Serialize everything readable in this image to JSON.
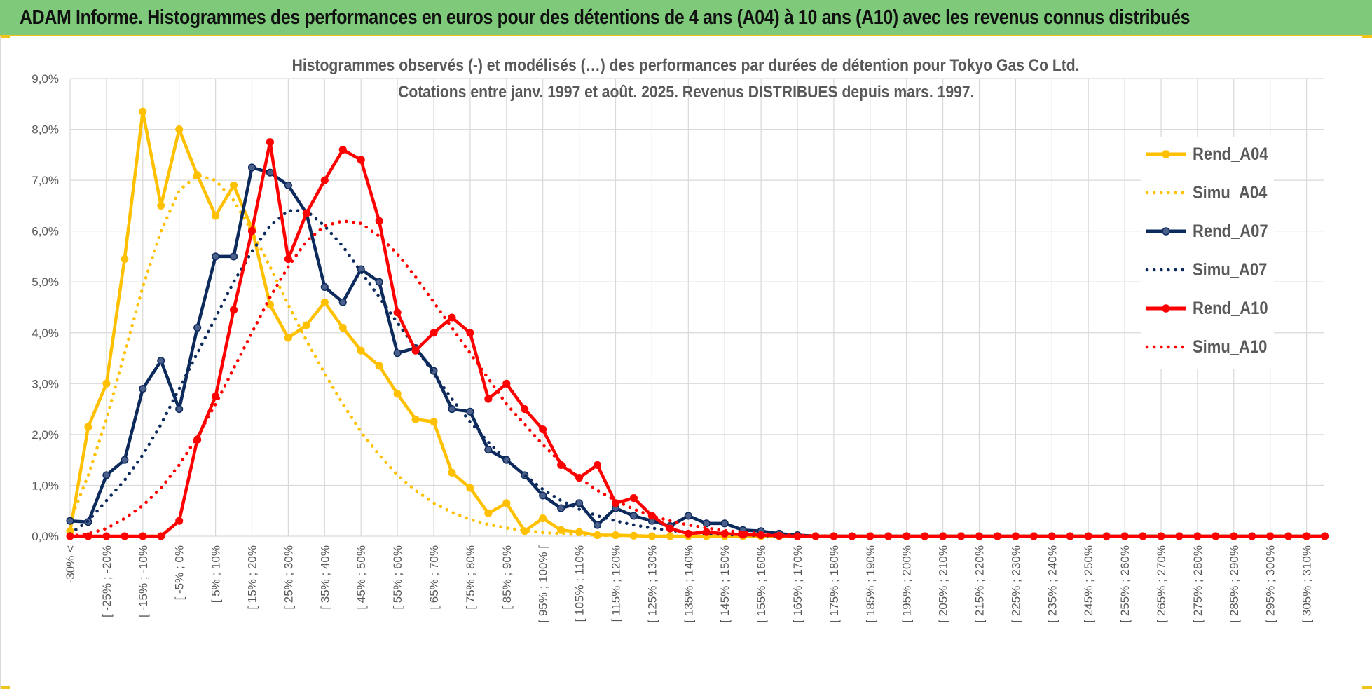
{
  "banner": {
    "title": "ADAM Informe. Histogrammes des performances en euros pour des détentions de 4 ans (A04) à 10 ans (A10) avec les revenus connus distribués"
  },
  "colors": {
    "banner_bg": "#7fc97a",
    "accent_yellow": "#f0c419",
    "A04": "#ffc000",
    "A07": "#0d2a5c",
    "A10": "#ff0000"
  },
  "chart_data": {
    "type": "line",
    "title_line1": "Histogrammes observés (-) et modélisés (…) des performances par durées de détention pour Tokyo Gas Co Ltd.",
    "title_line2": "Cotations entre janv. 1997 et août. 2025. Revenus DISTRIBUES depuis mars. 1997.",
    "ylim": [
      0,
      9
    ],
    "yticks": [
      "0,0%",
      "1,0%",
      "2,0%",
      "3,0%",
      "4,0%",
      "5,0%",
      "6,0%",
      "7,0%",
      "8,0%",
      "9,0%"
    ],
    "grid": true,
    "legend_position": "right",
    "category_labels": [
      "-30% <",
      "[ -25% ; -20%",
      "[ -15% ; -10%",
      "[ -5% ; 0%",
      "[ 5% ; 10%",
      "[ 15% ; 20%",
      "[ 25% ; 30%",
      "[ 35% ; 40%",
      "[ 45% ; 50%",
      "[ 55% ; 60%",
      "[ 65% ; 70%",
      "[ 75% ; 80%",
      "[ 85% ; 90%",
      "[ 95% ; 100% [",
      "[ 105% ; 110%",
      "[ 115% ; 120%",
      "[ 125% ; 130%",
      "[ 135% ; 140%",
      "[ 145% ; 150%",
      "[ 155% ; 160%",
      "[ 165% ; 170%",
      "[ 175% ; 180%",
      "[ 185% ; 190%",
      "[ 195% ; 200%",
      "[ 205% ; 210%",
      "[ 215% ; 220%",
      "[ 225% ; 230%",
      "[ 235% ; 240%",
      "[ 245% ; 250%",
      "[ 255% ; 260%",
      "[ 265% ; 270%",
      "[ 275% ; 280%",
      "[ 285% ; 290%",
      "[ 295% ; 300%",
      "[ 305% ; 310%"
    ],
    "series": [
      {
        "name": "Rend_A04",
        "style": "solid",
        "markers": true,
        "color": "#ffc000",
        "values": [
          0.1,
          2.15,
          3.0,
          5.45,
          8.35,
          6.5,
          8.0,
          7.1,
          6.3,
          6.9,
          6.05,
          4.55,
          3.9,
          4.15,
          4.6,
          4.1,
          3.65,
          3.35,
          2.8,
          2.3,
          2.25,
          1.25,
          0.95,
          0.45,
          0.65,
          0.1,
          0.35,
          0.12,
          0.08,
          0.02,
          0.02,
          0.01,
          0.0,
          0.0,
          0.0
        ]
      },
      {
        "name": "Simu_A04",
        "style": "dotted",
        "markers": false,
        "color": "#ffc000",
        "values": [
          0.3,
          1.2,
          2.3,
          3.6,
          4.9,
          6.0,
          6.8,
          7.1,
          7.0,
          6.6,
          6.0,
          5.3,
          4.55,
          3.85,
          3.2,
          2.6,
          2.05,
          1.6,
          1.2,
          0.9,
          0.65,
          0.47,
          0.33,
          0.23,
          0.16,
          0.11,
          0.07,
          0.05,
          0.03,
          0.02,
          0.01,
          0.01,
          0.0,
          0.0,
          0.0
        ]
      },
      {
        "name": "Rend_A07",
        "style": "solid",
        "markers": true,
        "color": "#0d2a5c",
        "values": [
          0.3,
          0.28,
          1.2,
          1.5,
          2.9,
          3.45,
          2.5,
          4.1,
          5.5,
          5.5,
          7.25,
          7.15,
          6.9,
          6.35,
          4.9,
          4.6,
          5.25,
          5.0,
          3.6,
          3.7,
          3.25,
          2.5,
          2.45,
          1.7,
          1.5,
          1.2,
          0.8,
          0.55,
          0.65,
          0.22,
          0.55,
          0.4,
          0.3,
          0.2,
          0.4,
          0.25,
          0.25,
          0.12,
          0.1,
          0.05,
          0.02
        ]
      },
      {
        "name": "Simu_A07",
        "style": "dotted",
        "markers": false,
        "color": "#0d2a5c",
        "values": [
          0.05,
          0.3,
          0.7,
          1.1,
          1.6,
          2.2,
          2.9,
          3.6,
          4.3,
          5.0,
          5.6,
          6.1,
          6.4,
          6.4,
          6.1,
          5.7,
          5.2,
          4.7,
          4.2,
          3.7,
          3.2,
          2.7,
          2.25,
          1.85,
          1.5,
          1.2,
          0.92,
          0.7,
          0.53,
          0.4,
          0.3,
          0.22,
          0.16,
          0.11,
          0.08,
          0.05,
          0.03,
          0.02,
          0.01,
          0.0
        ]
      },
      {
        "name": "Rend_A10",
        "style": "solid",
        "markers": true,
        "color": "#ff0000",
        "values": [
          0.0,
          0.0,
          0.0,
          0.0,
          0.0,
          0.0,
          0.3,
          1.9,
          2.75,
          4.45,
          6.0,
          7.75,
          5.45,
          6.35,
          7.0,
          7.6,
          7.4,
          6.2,
          4.4,
          3.65,
          4.0,
          4.3,
          4.0,
          2.7,
          3.0,
          2.5,
          2.1,
          1.4,
          1.15,
          1.4,
          0.65,
          0.75,
          0.4,
          0.15,
          0.05,
          0.08,
          0.05,
          0.03,
          0.02,
          0.01,
          0.0,
          0.0,
          0.0,
          0.0,
          0.0,
          0.0,
          0.0,
          0.0,
          0.0,
          0.0,
          0.0,
          0.0,
          0.0,
          0.0,
          0.0,
          0.0,
          0.0,
          0.0,
          0.0,
          0.0,
          0.0,
          0.0,
          0.0,
          0.0,
          0.0,
          0.0,
          0.0,
          0.0,
          0.0,
          0.0
        ]
      },
      {
        "name": "Simu_A10",
        "style": "dotted",
        "markers": false,
        "color": "#ff0000",
        "values": [
          0.0,
          0.05,
          0.15,
          0.35,
          0.6,
          0.95,
          1.4,
          1.95,
          2.6,
          3.3,
          4.0,
          4.7,
          5.3,
          5.8,
          6.1,
          6.2,
          6.15,
          5.9,
          5.55,
          5.1,
          4.6,
          4.1,
          3.6,
          3.1,
          2.6,
          2.2,
          1.8,
          1.45,
          1.15,
          0.9,
          0.7,
          0.53,
          0.4,
          0.3,
          0.22,
          0.16,
          0.11,
          0.08,
          0.05,
          0.03,
          0.02,
          0.01,
          0.0
        ]
      }
    ]
  }
}
